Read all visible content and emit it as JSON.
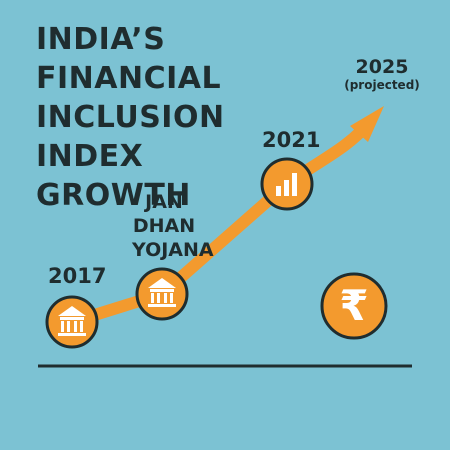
{
  "title_lines": [
    "INDIA’S FINANCIAL",
    "INCLUSION INDEX",
    "GROWTH"
  ],
  "colors": {
    "background": "#7cc2d3",
    "line": "#f39a2e",
    "marker_fill": "#f39a2e",
    "marker_ring": "#1f2d2f",
    "text": "#1f2d2f",
    "baseline": "#1f2d2f"
  },
  "chart_data": {
    "type": "line",
    "title": "INDIA’S FINANCIAL INCLUSION INDEX GROWTH",
    "points": [
      {
        "label": "2017",
        "sublabel": "",
        "icon": "bank-icon"
      },
      {
        "label": "JAN DHAN YOJANA",
        "sublabel": "",
        "icon": "bank-icon"
      },
      {
        "label": "2021",
        "sublabel": "",
        "icon": "bar-chart-icon"
      },
      {
        "label": "2025",
        "sublabel": "(projected)",
        "icon": "arrow-up-icon"
      }
    ],
    "extra_icon": "rupee-icon",
    "grid": false,
    "axes_shown": false
  },
  "labels": {
    "p2017": "2017",
    "jandhan": [
      "JAN",
      "DHAN",
      "YOJANA"
    ],
    "p2021": "2021",
    "p2025": "2025",
    "p2025_note": "(projected)",
    "rupee": "₹"
  }
}
